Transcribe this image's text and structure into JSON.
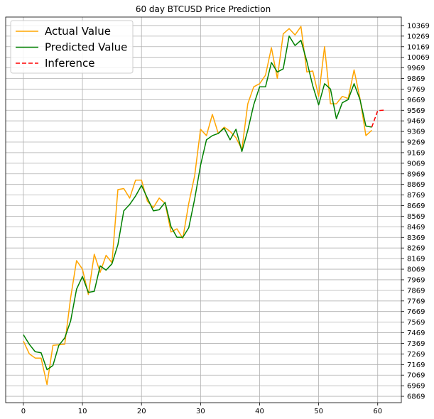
{
  "chart_data": {
    "type": "line",
    "title": "60 day BTCUSD Price Prediction",
    "xlabel": "",
    "ylabel": "",
    "xlim": [
      -3,
      64
    ],
    "ylim": [
      6809,
      10449
    ],
    "x_ticks": [
      0,
      10,
      20,
      30,
      40,
      50,
      60
    ],
    "y_ticks": [
      6869,
      6969,
      7069,
      7169,
      7269,
      7369,
      7469,
      7569,
      7669,
      7769,
      7869,
      7969,
      8069,
      8169,
      8269,
      8369,
      8469,
      8569,
      8669,
      8769,
      8869,
      8969,
      9069,
      9169,
      9269,
      9369,
      9469,
      9569,
      9669,
      9769,
      9869,
      9969,
      10069,
      10169,
      10269,
      10369
    ],
    "y_axis_side": "right",
    "grid": true,
    "legend_position": "top-left",
    "series": [
      {
        "name": "Actual Value",
        "color": "#ffa500",
        "style": "solid",
        "x": [
          0,
          1,
          2,
          3,
          4,
          5,
          6,
          7,
          8,
          9,
          10,
          11,
          12,
          13,
          14,
          15,
          16,
          17,
          18,
          19,
          20,
          21,
          22,
          23,
          24,
          25,
          26,
          27,
          28,
          29,
          30,
          31,
          32,
          33,
          34,
          35,
          36,
          37,
          38,
          39,
          40,
          41,
          42,
          43,
          44,
          45,
          46,
          47,
          48,
          49,
          50,
          51,
          52,
          53,
          54,
          55,
          56,
          57,
          58,
          59
        ],
        "values": [
          7390,
          7270,
          7230,
          7230,
          6980,
          7350,
          7355,
          7360,
          7800,
          8150,
          8070,
          7830,
          8210,
          8040,
          8200,
          8130,
          8820,
          8830,
          8740,
          8910,
          8910,
          8710,
          8650,
          8740,
          8690,
          8420,
          8450,
          8360,
          8690,
          8950,
          9390,
          9330,
          9530,
          9350,
          9410,
          9370,
          9310,
          9200,
          9630,
          9790,
          9820,
          9900,
          10160,
          9870,
          10290,
          10340,
          10280,
          10360,
          9930,
          9940,
          9700,
          10170,
          9630,
          9630,
          9700,
          9680,
          9950,
          9680,
          9330,
          9380
        ]
      },
      {
        "name": "Predicted Value",
        "color": "#008000",
        "style": "solid",
        "x": [
          0,
          1,
          2,
          3,
          4,
          5,
          6,
          7,
          8,
          9,
          10,
          11,
          12,
          13,
          14,
          15,
          16,
          17,
          18,
          19,
          20,
          21,
          22,
          23,
          24,
          25,
          26,
          27,
          28,
          29,
          30,
          31,
          32,
          33,
          34,
          35,
          36,
          37,
          38,
          39,
          40,
          41,
          42,
          43,
          44,
          45,
          46,
          47,
          48,
          49,
          50,
          51,
          52,
          53,
          54,
          55,
          56,
          57,
          58,
          59
        ],
        "values": [
          7450,
          7360,
          7290,
          7280,
          7120,
          7160,
          7350,
          7420,
          7580,
          7880,
          8000,
          7850,
          7860,
          8100,
          8060,
          8120,
          8300,
          8620,
          8680,
          8760,
          8860,
          8740,
          8620,
          8630,
          8700,
          8470,
          8370,
          8370,
          8460,
          8730,
          9050,
          9290,
          9330,
          9350,
          9400,
          9290,
          9390,
          9180,
          9380,
          9620,
          9790,
          9790,
          10020,
          9930,
          9960,
          10270,
          10180,
          10230,
          10030,
          9800,
          9620,
          9820,
          9770,
          9490,
          9640,
          9670,
          9820,
          9670,
          9420,
          9410
        ]
      },
      {
        "name": "Inference",
        "color": "#ff0000",
        "style": "dashed",
        "x": [
          59,
          60,
          61
        ],
        "values": [
          9410,
          9565,
          9570
        ]
      }
    ]
  }
}
